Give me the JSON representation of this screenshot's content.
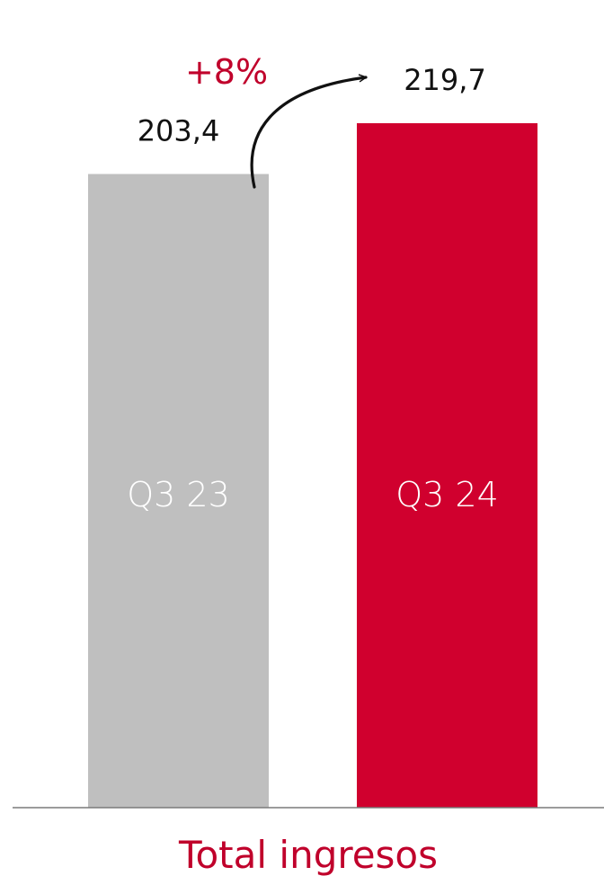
{
  "chart_data": {
    "type": "bar",
    "title": "Total ingresos",
    "categories": [
      "Q3 23",
      "Q3 24"
    ],
    "values": [
      203.4,
      219.7
    ],
    "value_labels": [
      "203,4",
      "219,7"
    ],
    "colors": [
      "#bfbfbf",
      "#d0002e"
    ],
    "ylim": [
      0,
      219.7
    ],
    "grid": false,
    "legend": "none",
    "annotation": {
      "text": "+8%",
      "from": "Q3 23",
      "to": "Q3 24",
      "color": "#c0002b"
    }
  }
}
